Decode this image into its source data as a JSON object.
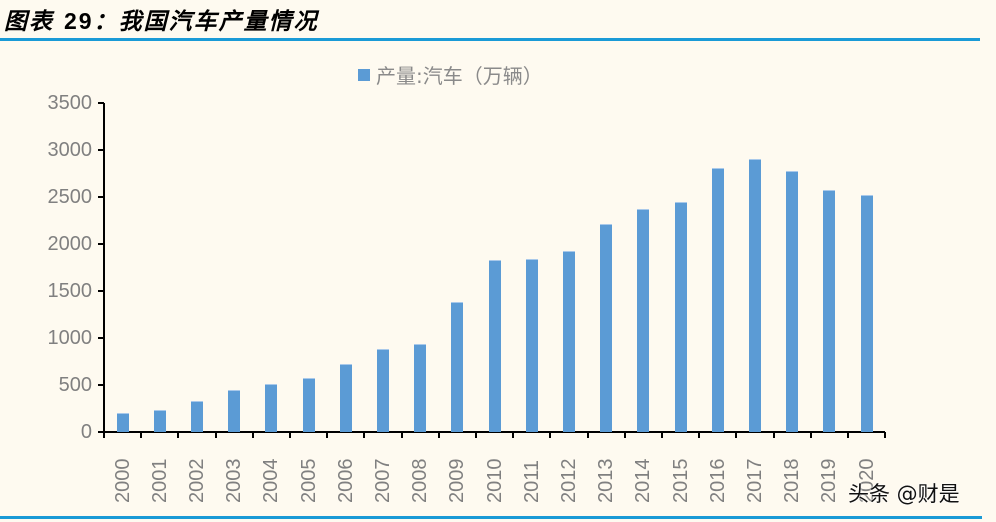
{
  "title": {
    "prefix": "图表",
    "number": "29",
    "suffix": "：我国汽车产量情况"
  },
  "legend": {
    "label": "产量:汽车（万辆）",
    "color": "#5b9bd5"
  },
  "watermark": "头条 @财是",
  "colors": {
    "bar": "#5b9bd5",
    "rule": "#1a9ad6",
    "background": "#fefaf0",
    "axis_text": "#808080"
  },
  "chart_data": {
    "type": "bar",
    "title": "我国汽车产量情况",
    "xlabel": "",
    "ylabel": "",
    "legend": [
      "产量:汽车（万辆）"
    ],
    "legend_position": "top",
    "grid": false,
    "ylim": [
      0,
      3500
    ],
    "yticks": [
      0,
      500,
      1000,
      1500,
      2000,
      2500,
      3000,
      3500
    ],
    "categories": [
      "2000",
      "2001",
      "2002",
      "2003",
      "2004",
      "2005",
      "2006",
      "2007",
      "2008",
      "2009",
      "2010",
      "2011",
      "2012",
      "2013",
      "2014",
      "2015",
      "2016",
      "2017",
      "2018",
      "2019",
      "2020"
    ],
    "series": [
      {
        "name": "产量:汽车（万辆）",
        "values": [
          207,
          234,
          325,
          444,
          507,
          570,
          728,
          888,
          935,
          1379,
          1827,
          1842,
          1927,
          2212,
          2372,
          2450,
          2812,
          2902,
          2781,
          2572,
          2523
        ]
      }
    ]
  }
}
